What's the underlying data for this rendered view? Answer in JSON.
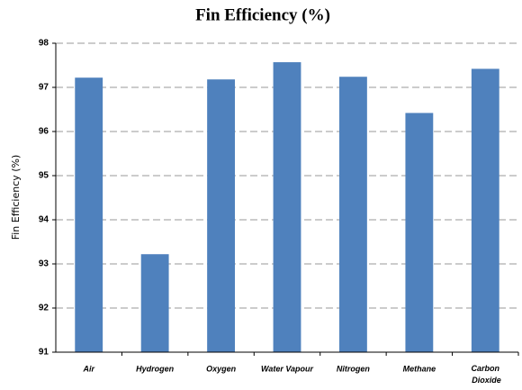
{
  "chart_data": {
    "type": "bar",
    "title": "Fin Efficiency (%)",
    "y_label": "Fin Efficiency (%)",
    "categories": [
      "Air",
      "Hydrogen",
      "Oxygen",
      "Water Vapour",
      "Nitrogen",
      "Methane",
      "Carbon Dioxide"
    ],
    "values": [
      97.22,
      93.22,
      97.18,
      97.57,
      97.24,
      96.42,
      97.42
    ],
    "color": "#4f81bd",
    "ylim": [
      91,
      98
    ],
    "yticks": [
      91,
      92,
      93,
      94,
      95,
      96,
      97,
      98
    ],
    "grid": true
  }
}
